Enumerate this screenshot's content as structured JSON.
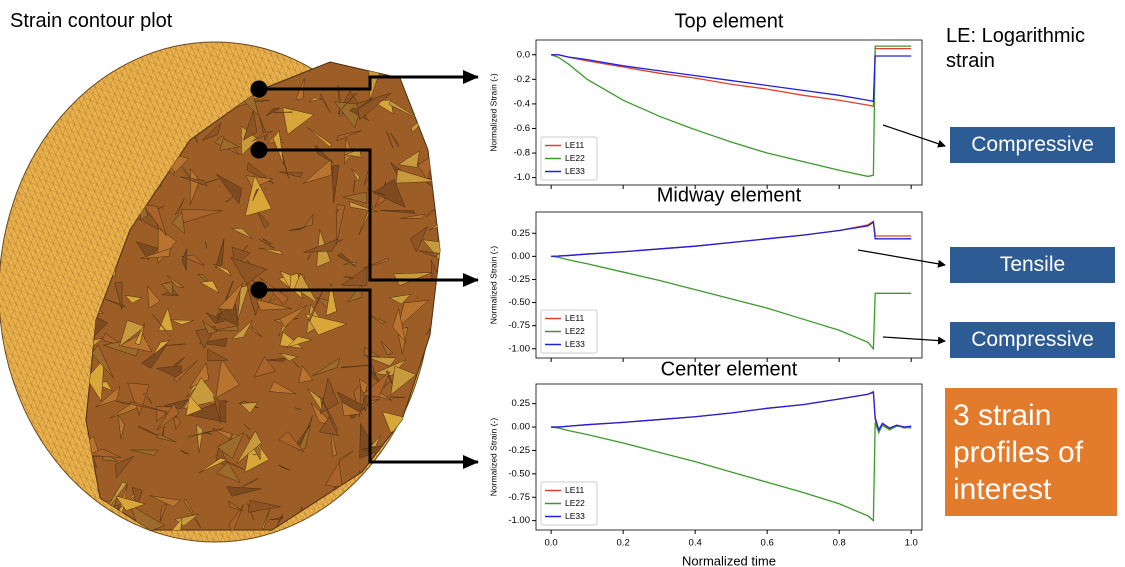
{
  "labels": {
    "contour_title": "Strain contour plot",
    "le_note": "LE: Logarithmic strain",
    "boxes": [
      "Compressive",
      "Tensile",
      "Compressive"
    ],
    "summary": "3 strain profiles of interest"
  },
  "chart_data": [
    {
      "type": "line",
      "title": "Top element",
      "y_label": "Normalized Strain (-)",
      "x": [
        0,
        0.02,
        0.05,
        0.1,
        0.2,
        0.3,
        0.4,
        0.5,
        0.6,
        0.7,
        0.8,
        0.88,
        0.895,
        0.9,
        0.95,
        1.0
      ],
      "series": [
        {
          "name": "LE11",
          "color": "#e0402a",
          "values": [
            0,
            0,
            -0.02,
            -0.05,
            -0.1,
            -0.15,
            -0.19,
            -0.24,
            -0.28,
            -0.33,
            -0.37,
            -0.41,
            -0.42,
            0.05,
            0.05,
            0.05
          ]
        },
        {
          "name": "LE22",
          "color": "#3c9a2c",
          "values": [
            0,
            -0.02,
            -0.08,
            -0.2,
            -0.37,
            -0.5,
            -0.61,
            -0.71,
            -0.8,
            -0.87,
            -0.94,
            -0.99,
            -0.98,
            0.07,
            0.07,
            0.07
          ]
        },
        {
          "name": "LE33",
          "color": "#2020e0",
          "values": [
            0,
            0,
            -0.02,
            -0.04,
            -0.09,
            -0.13,
            -0.17,
            -0.21,
            -0.25,
            -0.29,
            -0.33,
            -0.37,
            -0.38,
            -0.01,
            -0.01,
            -0.01
          ]
        }
      ],
      "xlim": [
        -0.042,
        1.03
      ],
      "ylim": [
        -1.06,
        0.12
      ],
      "xticks": [
        0,
        0.2,
        0.4,
        0.6,
        0.8,
        1.0
      ],
      "yticks": [
        {
          "value": 0,
          "label": "0.0"
        },
        {
          "value": -0.2,
          "label": "-0.2"
        },
        {
          "value": -0.4,
          "label": "-0.4"
        },
        {
          "value": -0.6,
          "label": "-0.6"
        },
        {
          "value": -0.8,
          "label": "-0.8"
        },
        {
          "value": -1.0,
          "label": "-1.0"
        }
      ],
      "legend": "lower left"
    },
    {
      "type": "line",
      "title": "Midway element",
      "y_label": "Normalized Strain (-)",
      "x": [
        0,
        0.02,
        0.05,
        0.1,
        0.2,
        0.3,
        0.4,
        0.5,
        0.6,
        0.7,
        0.8,
        0.88,
        0.895,
        0.9,
        0.95,
        1.0
      ],
      "series": [
        {
          "name": "LE11",
          "color": "#e0402a",
          "values": [
            0,
            0.003,
            0.01,
            0.025,
            0.05,
            0.08,
            0.11,
            0.15,
            0.19,
            0.23,
            0.28,
            0.34,
            0.38,
            0.22,
            0.22,
            0.22
          ]
        },
        {
          "name": "LE22",
          "color": "#3c9a2c",
          "values": [
            0,
            -0.01,
            -0.04,
            -0.08,
            -0.17,
            -0.26,
            -0.36,
            -0.46,
            -0.56,
            -0.68,
            -0.8,
            -0.93,
            -1.0,
            -0.4,
            -0.4,
            -0.4
          ]
        },
        {
          "name": "LE33",
          "color": "#2020e0",
          "values": [
            0,
            0.003,
            0.01,
            0.025,
            0.05,
            0.08,
            0.11,
            0.15,
            0.19,
            0.23,
            0.28,
            0.33,
            0.37,
            0.19,
            0.19,
            0.19
          ]
        }
      ],
      "xlim": [
        -0.042,
        1.03
      ],
      "ylim": [
        -1.1,
        0.48
      ],
      "xticks": [
        0,
        0.2,
        0.4,
        0.6,
        0.8,
        1.0
      ],
      "yticks": [
        0.25,
        {
          "value": 0,
          "label": "0.00"
        },
        {
          "value": -0.25,
          "label": "-0.25"
        },
        {
          "value": -0.5,
          "label": "-0.50"
        },
        {
          "value": -0.75,
          "label": "-0.75"
        },
        {
          "value": -1.0,
          "label": "-1.00"
        }
      ],
      "legend": "lower left"
    },
    {
      "type": "line",
      "title": "Center element",
      "y_label": "Normalized Strain (-)",
      "x_label": "Normalized time",
      "x": [
        0,
        0.02,
        0.05,
        0.1,
        0.2,
        0.3,
        0.4,
        0.5,
        0.6,
        0.7,
        0.8,
        0.88,
        0.895,
        0.9,
        0.91,
        0.92,
        0.94,
        0.96,
        0.98,
        1.0
      ],
      "series": [
        {
          "name": "LE11",
          "color": "#e0402a",
          "values": [
            0,
            0,
            0.01,
            0.025,
            0.05,
            0.08,
            0.11,
            0.15,
            0.2,
            0.24,
            0.3,
            0.35,
            0.38,
            0.08,
            -0.05,
            0.03,
            -0.02,
            0.02,
            -0.01,
            0
          ]
        },
        {
          "name": "LE22",
          "color": "#3c9a2c",
          "values": [
            0,
            -0.01,
            -0.04,
            -0.08,
            -0.17,
            -0.27,
            -0.37,
            -0.48,
            -0.59,
            -0.7,
            -0.82,
            -0.95,
            -1.0,
            0.05,
            -0.06,
            0.02,
            -0.03,
            0.01,
            0,
            -0.01
          ]
        },
        {
          "name": "LE33",
          "color": "#2020e0",
          "values": [
            0,
            0,
            0.01,
            0.025,
            0.05,
            0.08,
            0.11,
            0.15,
            0.2,
            0.24,
            0.3,
            0.35,
            0.37,
            0.1,
            -0.03,
            0.04,
            -0.01,
            0.02,
            0,
            0.01
          ]
        }
      ],
      "xlim": [
        -0.042,
        1.03
      ],
      "ylim": [
        -1.1,
        0.46
      ],
      "xticks": [
        {
          "value": 0,
          "label": "0.0"
        },
        0.2,
        0.4,
        0.6,
        0.8,
        {
          "value": 1.0,
          "label": "1.0"
        }
      ],
      "yticks": [
        0.25,
        {
          "value": 0,
          "label": "0.00"
        },
        {
          "value": -0.25,
          "label": "-0.25"
        },
        {
          "value": -0.5,
          "label": "-0.50"
        },
        {
          "value": -0.75,
          "label": "-0.75"
        },
        {
          "value": -1.0,
          "label": "-1.00"
        }
      ],
      "legend": "lower left"
    }
  ]
}
